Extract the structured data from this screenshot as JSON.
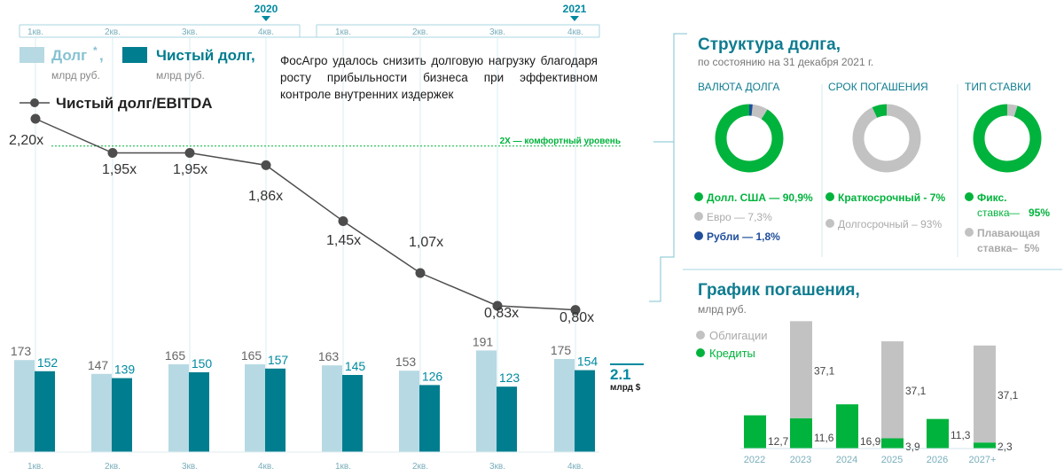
{
  "colors": {
    "debt": "#b7d9e3",
    "net_debt": "#007d8f",
    "ratio_line": "#4d4d4d",
    "comfort": "#00b33c",
    "teal_text": "#0089a0",
    "green": "#00b33c",
    "grey": "#c2c2c2",
    "blue": "#1f4e9b",
    "axis_lines": "#a9d6e0",
    "title_teal": "#0f7c90"
  },
  "header": {
    "year_2020": "2020",
    "year_2021": "2021",
    "quarters_top": [
      "1кв.",
      "2кв.",
      "3кв.",
      "4кв.",
      "1кв.",
      "2кв.",
      "3кв.",
      "4кв."
    ]
  },
  "legend": {
    "debt_label": "Долг",
    "debt_star": "*",
    "debt_comma": ",",
    "debt_unit": "млрд руб.",
    "net_label": "Чистый долг,",
    "net_unit": "млрд руб.",
    "ratio_label": "Чистый долг/EBITDA"
  },
  "description": "ФосАгро удалось снизить долговую нагрузку благодаря росту прибыльности бизнеса при эффективном контроле внутренних издержек",
  "comfort_label": "2Х — комфортный уровень",
  "side_note": {
    "value": "2.1",
    "unit": "млрд $"
  },
  "chart_data": [
    {
      "type": "bar",
      "categories": [
        "1кв.",
        "2кв.",
        "3кв.",
        "4кв.",
        "1кв.",
        "2кв.",
        "3кв.",
        "4кв."
      ],
      "series": [
        {
          "name": "Долг",
          "values": [
            173,
            147,
            165,
            165,
            163,
            153,
            191,
            175
          ]
        },
        {
          "name": "Чистый долг",
          "values": [
            152,
            139,
            150,
            157,
            145,
            126,
            123,
            154
          ]
        }
      ],
      "overlay_line": {
        "name": "Чистый долг/EBITDA",
        "values": [
          2.2,
          1.95,
          1.95,
          1.86,
          1.45,
          1.07,
          0.83,
          0.8
        ],
        "labels": [
          "2,20x",
          "1,95x",
          "1,95x",
          "1,86x",
          "1,45x",
          "1,07x",
          "0,83x",
          "0,80x"
        ],
        "reference": 2.0
      }
    },
    {
      "type": "pie",
      "title": "ВАЛЮТА ДОЛГА",
      "slices": [
        {
          "label": "Долл. США — 90,9%",
          "value": 90.9,
          "color": "#00b33c"
        },
        {
          "label": "Евро — 7,3%",
          "value": 7.3,
          "color": "#c2c2c2"
        },
        {
          "label": "Рубли — 1,8%",
          "value": 1.8,
          "color": "#1f4e9b"
        }
      ]
    },
    {
      "type": "pie",
      "title": "СРОК ПОГАШЕНИЯ",
      "slices": [
        {
          "label": "Краткосрочный - 7%",
          "value": 7,
          "color": "#00b33c"
        },
        {
          "label": "Долгосрочный – 93%",
          "value": 93,
          "color": "#c2c2c2"
        }
      ]
    },
    {
      "type": "pie",
      "title": "ТИП СТАВКИ",
      "slices": [
        {
          "label1": "Фикс.",
          "label2": "ставка",
          "pct": "95%",
          "value": 95,
          "color": "#00b33c"
        },
        {
          "label1": "Плавающая",
          "label2": "ставка",
          "pct": "5%",
          "value": 5,
          "color": "#c2c2c2"
        }
      ]
    },
    {
      "type": "bar",
      "title": "График погашения,",
      "unit": "млрд руб.",
      "categories": [
        "2022",
        "2023",
        "2024",
        "2025",
        "2026",
        "2027+"
      ],
      "series": [
        {
          "name": "Облигации",
          "values": [
            0,
            37.1,
            0,
            37.1,
            0,
            37.1
          ],
          "labels": [
            "",
            "37,1",
            "",
            "37,1",
            "",
            "37,1"
          ]
        },
        {
          "name": "Кредиты",
          "values": [
            12.7,
            11.6,
            16.9,
            3.9,
            11.3,
            2.3
          ],
          "labels": [
            "12,7",
            "11,6",
            "16,9",
            "3,9",
            "11,3",
            "2,3"
          ]
        }
      ]
    }
  ],
  "structure": {
    "title": "Структура долга,",
    "subtitle": "по состоянию на 31 декабря 2021 г."
  }
}
